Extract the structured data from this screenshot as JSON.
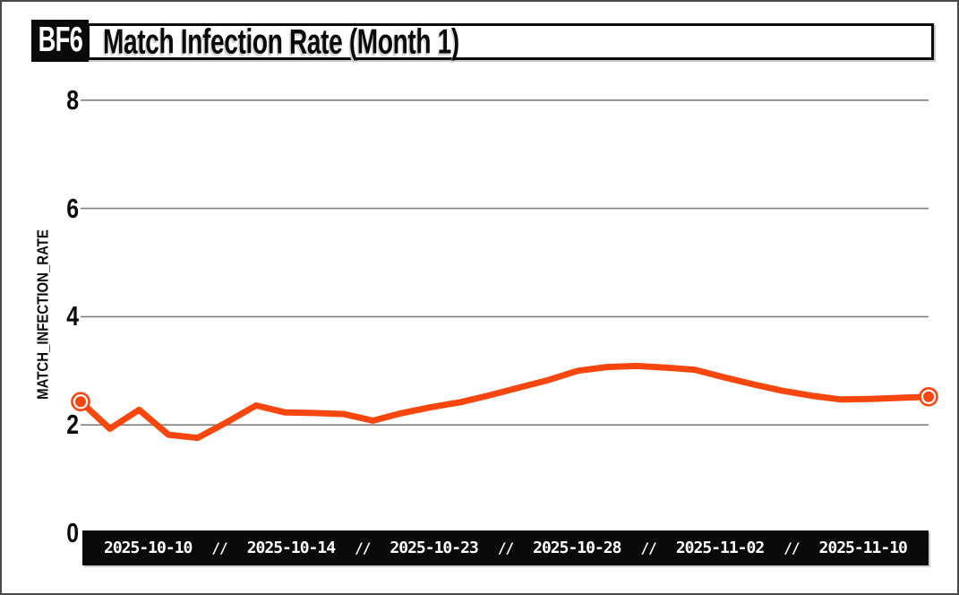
{
  "header": {
    "badge": "BF6",
    "title": "Match Infection Rate (Month 1)"
  },
  "chart_data": {
    "type": "line",
    "title": "Match Infection Rate (Month 1)",
    "xlabel": "",
    "ylabel": "MATCH_INFECTION_RATE",
    "ylim": [
      0,
      8.6
    ],
    "y_ticks": [
      0,
      2,
      4,
      6,
      8
    ],
    "grid": "horizontal",
    "grid_color": "#7f7f7f",
    "line_color": "#f8470e",
    "axis_bar_color": "#0a0a0a",
    "x_tick_labels": [
      "2025-10-10",
      "2025-10-14",
      "2025-10-23",
      "2025-10-28",
      "2025-11-02",
      "2025-11-10"
    ],
    "x_tick_separator": "//",
    "x_tick_indices": [
      2,
      7,
      12,
      17,
      22,
      27
    ],
    "markers": "ring markers on first and last point",
    "series": [
      {
        "name": "MATCH_INFECTION_RATE",
        "values": [
          2.43,
          1.93,
          2.28,
          1.82,
          1.76,
          2.05,
          2.36,
          2.23,
          2.22,
          2.2,
          2.08,
          2.22,
          2.33,
          2.42,
          2.55,
          2.69,
          2.83,
          3.0,
          3.07,
          3.09,
          3.06,
          3.02,
          2.88,
          2.75,
          2.63,
          2.54,
          2.47,
          2.48,
          2.5,
          2.52
        ]
      }
    ]
  }
}
